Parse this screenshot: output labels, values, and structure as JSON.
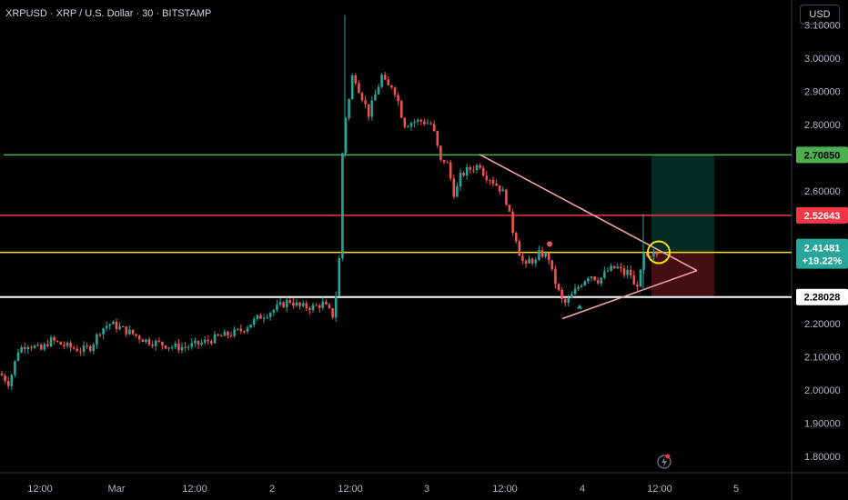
{
  "header": {
    "title": "XRPUSD · XRP / U.S. Dollar · 30 · BITSTAMP"
  },
  "currency_button": {
    "label": "USD"
  },
  "colors": {
    "background": "#000000",
    "up": "#26a69a",
    "down": "#ef5350",
    "level_green": "#4caf50",
    "level_red": "#f23645",
    "level_yellow": "#f5e50a",
    "level_white": "#ffffff",
    "triangle": "#f7a1a8"
  },
  "chart_data": {
    "type": "candlestick",
    "symbol": "XRPUSD",
    "interval": "30",
    "exchange": "BITSTAMP",
    "y_axis": {
      "ticks": [
        "3.00000",
        "2.90000",
        "2.80000",
        "2.60000",
        "2.20000",
        "2.10000",
        "2.00000",
        "1.90000",
        "1.80000"
      ],
      "range": [
        1.75,
        3.08
      ]
    },
    "x_axis": {
      "ticks": [
        "12:00",
        "Mar",
        "12:00",
        "2",
        "12:00",
        "3",
        "12:00",
        "4",
        "12:00",
        "5"
      ],
      "range": [
        "Feb 28 06:00",
        "Mar 5 09:00"
      ]
    },
    "price_levels": [
      {
        "label": "2.70850",
        "price": 2.7085,
        "color": "green"
      },
      {
        "label": "2.52643",
        "price": 2.52643,
        "color": "red"
      },
      {
        "label": "2.41481",
        "sublabel": "+19.22%",
        "price": 2.41481,
        "color": "yellow"
      },
      {
        "label": "2.28028",
        "price": 2.28028,
        "color": "white"
      }
    ],
    "path": [
      [
        0,
        2.05
      ],
      [
        10,
        2.02
      ],
      [
        20,
        2.12
      ],
      [
        30,
        2.14
      ],
      [
        45,
        2.12
      ],
      [
        55,
        2.15
      ],
      [
        75,
        2.13
      ],
      [
        90,
        2.12
      ],
      [
        100,
        2.13
      ],
      [
        110,
        2.18
      ],
      [
        120,
        2.2
      ],
      [
        130,
        2.19
      ],
      [
        145,
        2.17
      ],
      [
        160,
        2.15
      ],
      [
        175,
        2.14
      ],
      [
        190,
        2.13
      ],
      [
        205,
        2.13
      ],
      [
        220,
        2.14
      ],
      [
        240,
        2.16
      ],
      [
        255,
        2.17
      ],
      [
        265,
        2.18
      ],
      [
        275,
        2.2
      ],
      [
        285,
        2.22
      ],
      [
        300,
        2.24
      ],
      [
        312,
        2.26
      ],
      [
        318,
        2.27
      ],
      [
        330,
        2.25
      ],
      [
        345,
        2.25
      ],
      [
        355,
        2.26
      ],
      [
        367,
        2.22
      ],
      [
        373,
        2.4
      ],
      [
        376,
        2.7
      ],
      [
        379,
        2.81
      ],
      [
        384,
        2.88
      ],
      [
        388,
        2.96
      ],
      [
        394,
        2.91
      ],
      [
        400,
        2.87
      ],
      [
        405,
        2.83
      ],
      [
        410,
        2.87
      ],
      [
        415,
        2.91
      ],
      [
        420,
        2.95
      ],
      [
        425,
        2.91
      ],
      [
        430,
        2.92
      ],
      [
        436,
        2.89
      ],
      [
        440,
        2.84
      ],
      [
        445,
        2.8
      ],
      [
        455,
        2.81
      ],
      [
        465,
        2.81
      ],
      [
        475,
        2.8
      ],
      [
        480,
        2.74
      ],
      [
        485,
        2.68
      ],
      [
        490,
        2.7
      ],
      [
        495,
        2.64
      ],
      [
        500,
        2.58
      ],
      [
        505,
        2.64
      ],
      [
        512,
        2.66
      ],
      [
        520,
        2.67
      ],
      [
        528,
        2.68
      ],
      [
        532,
        2.65
      ],
      [
        538,
        2.64
      ],
      [
        545,
        2.62
      ],
      [
        552,
        2.6
      ],
      [
        558,
        2.56
      ],
      [
        562,
        2.49
      ],
      [
        567,
        2.46
      ],
      [
        572,
        2.4
      ],
      [
        578,
        2.37
      ],
      [
        583,
        2.4
      ],
      [
        588,
        2.38
      ],
      [
        592,
        2.41
      ],
      [
        597,
        2.41
      ],
      [
        603,
        2.4
      ],
      [
        607,
        2.35
      ],
      [
        611,
        2.32
      ],
      [
        617,
        2.27
      ],
      [
        622,
        2.26
      ],
      [
        630,
        2.29
      ],
      [
        638,
        2.32
      ],
      [
        648,
        2.35
      ],
      [
        658,
        2.33
      ],
      [
        668,
        2.36
      ],
      [
        678,
        2.37
      ],
      [
        686,
        2.35
      ],
      [
        692,
        2.36
      ],
      [
        697,
        2.31
      ],
      [
        703,
        2.33
      ],
      [
        707,
        2.41
      ],
      [
        712,
        2.39
      ],
      [
        717,
        2.4
      ],
      [
        721,
        2.41
      ],
      [
        725,
        2.41
      ]
    ],
    "triangle": {
      "upper_line": [
        [
          "Mar 3 08:00",
          2.72
        ],
        [
          "Mar 4 13:30",
          2.36
        ]
      ],
      "lower_line": [
        [
          "Mar 3 20:00",
          2.22
        ],
        [
          "Mar 4 13:30",
          2.36
        ]
      ]
    },
    "position_box": {
      "entry": 2.41481,
      "target": 2.7085,
      "stop": 2.28028
    },
    "markers": [
      "red-dot",
      "green-triangle",
      "yellow-circle"
    ]
  }
}
